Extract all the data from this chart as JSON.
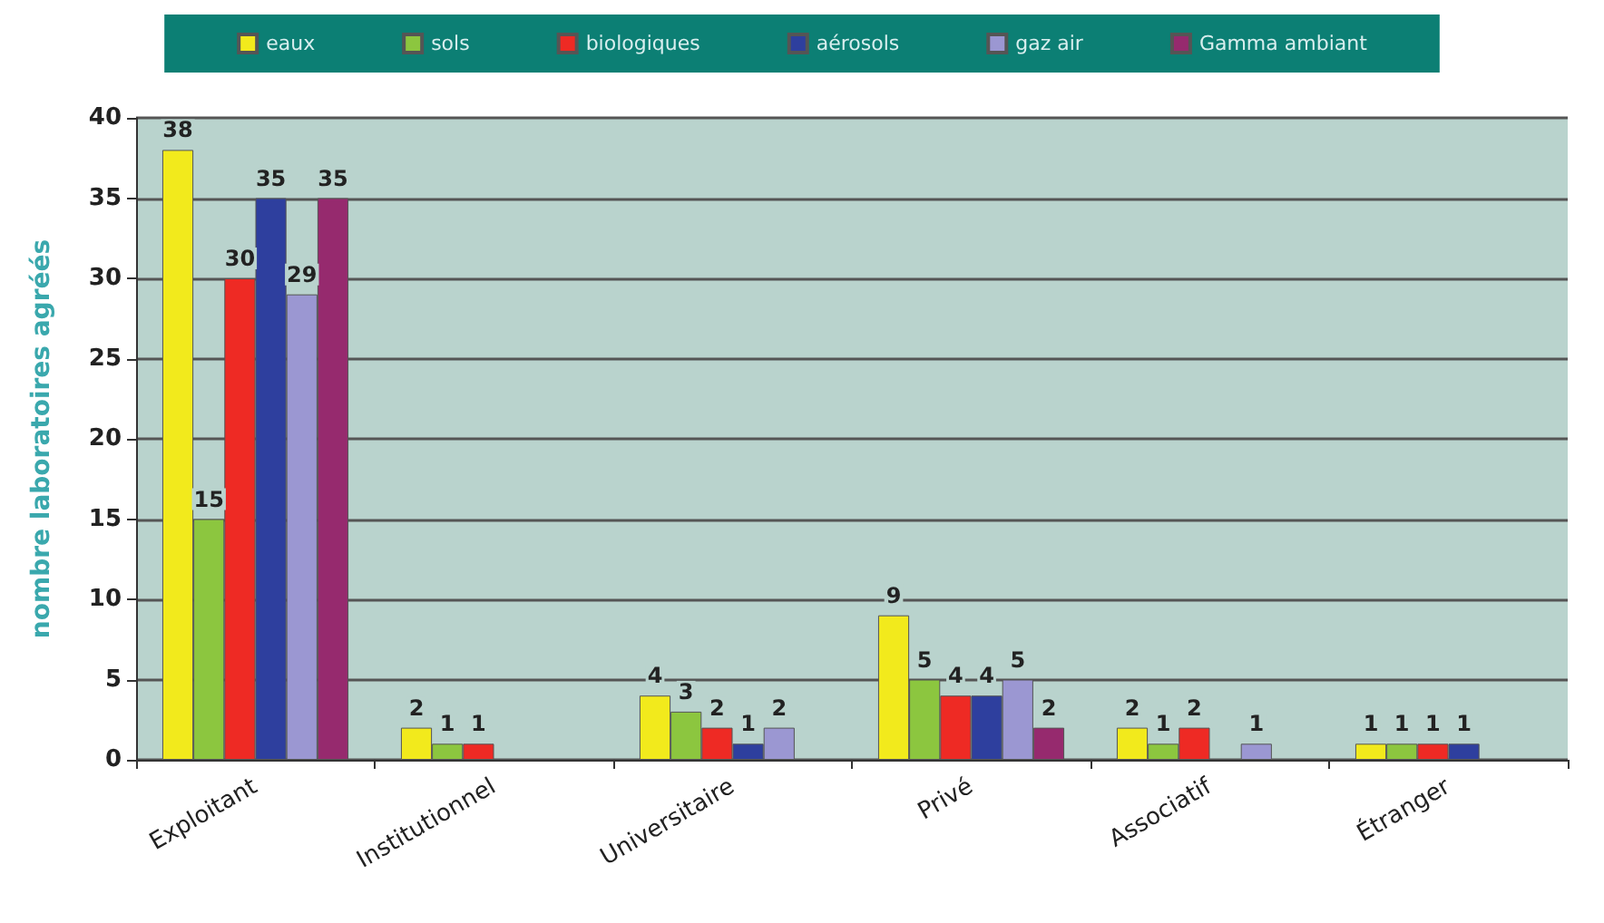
{
  "chart_data": {
    "type": "bar",
    "ylabel": "nombre laboratoires agréés",
    "categories": [
      "Exploitant",
      "Institutionnel",
      "Universitaire",
      "Privé",
      "Associatif",
      "Étranger"
    ],
    "series": [
      {
        "name": "eaux",
        "color": "#f2ea1c",
        "values": [
          38,
          2,
          4,
          9,
          2,
          1
        ]
      },
      {
        "name": "sols",
        "color": "#8cc63f",
        "values": [
          15,
          1,
          3,
          5,
          1,
          1
        ]
      },
      {
        "name": "biologiques",
        "color": "#ee2a24",
        "values": [
          30,
          1,
          2,
          4,
          2,
          1
        ]
      },
      {
        "name": "aérosols",
        "color": "#2e3f9e",
        "values": [
          35,
          null,
          1,
          4,
          null,
          1
        ]
      },
      {
        "name": "gaz air",
        "color": "#9b97d2",
        "values": [
          29,
          null,
          2,
          5,
          1,
          null
        ]
      },
      {
        "name": "Gamma ambiant",
        "color": "#962a6e",
        "values": [
          35,
          null,
          null,
          2,
          null,
          null
        ]
      }
    ],
    "ylim": [
      0,
      40
    ],
    "yticks": [
      0,
      5,
      10,
      15,
      20,
      25,
      30,
      35,
      40
    ],
    "grid": "y",
    "legend": "top",
    "data_labels": true
  }
}
